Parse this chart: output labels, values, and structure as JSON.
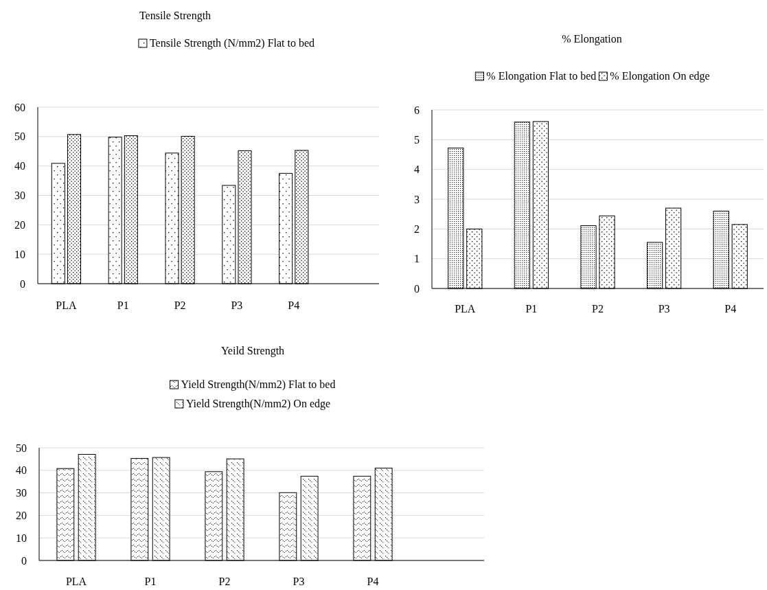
{
  "chart_data": [
    {
      "type": "bar",
      "title": "Tensile Strength",
      "categories": [
        "PLA",
        "P1",
        "P2",
        "P3",
        "P4",
        null
      ],
      "series": [
        {
          "name": "Tensile Strength (N/mm2) Flat to bed",
          "color": "#000000",
          "values": [
            40.9,
            49.8,
            44.4,
            33.4,
            37.5,
            null
          ]
        },
        {
          "color": "#000000",
          "values": [
            50.7,
            50.3,
            50.1,
            45.2,
            45.3,
            null
          ]
        }
      ],
      "ylim": [
        0,
        60
      ],
      "yticks": [
        0,
        10,
        20,
        30,
        40,
        50,
        60
      ],
      "grid": "y",
      "legend": "top"
    },
    {
      "type": "bar",
      "title": "% Elongation",
      "categories": [
        "PLA",
        "P1",
        "P2",
        "P3",
        "P4"
      ],
      "series": [
        {
          "name": "% Elongation Flat to bed",
          "color": "#000000",
          "values": [
            4.72,
            5.59,
            2.11,
            1.55,
            2.6
          ]
        },
        {
          "name": "% Elongation On edge",
          "color": "#000000",
          "values": [
            2.0,
            5.61,
            2.44,
            2.7,
            2.15
          ]
        }
      ],
      "ylim": [
        0,
        6
      ],
      "yticks": [
        0,
        1,
        2,
        3,
        4,
        5,
        6
      ],
      "grid": "y",
      "legend": "top"
    },
    {
      "type": "bar",
      "title": "Yeild Strength",
      "categories": [
        "PLA",
        "P1",
        "P2",
        "P3",
        "P4",
        null
      ],
      "series": [
        {
          "name": "Yield Strength(N/mm2) Flat to bed",
          "color": "#000000",
          "values": [
            40.8,
            45.3,
            39.4,
            30.1,
            37.4,
            null
          ]
        },
        {
          "name": "Yield Strength(N/mm2) On edge",
          "color": "#000000",
          "values": [
            47.1,
            45.7,
            45.1,
            37.4,
            41.0,
            null
          ]
        }
      ],
      "ylim": [
        0,
        50
      ],
      "yticks": [
        0,
        10,
        20,
        30,
        40,
        50
      ],
      "grid": "y",
      "legend": "top"
    }
  ]
}
